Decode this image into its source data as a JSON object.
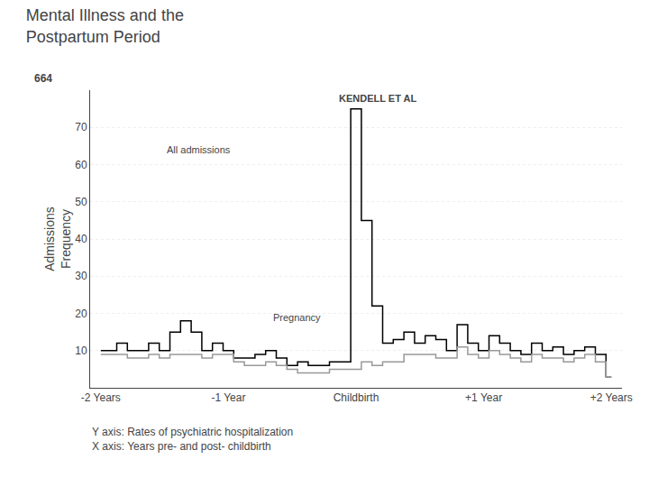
{
  "chart_data": {
    "type": "line",
    "title": "Mental Illness and the\nPostpartum Period",
    "notes": [
      "Y axis: Rates of psychiatric hospitalization",
      "X axis: Years pre- and post- childbirth"
    ],
    "corner_label": "664",
    "ylabel": "Admissions\nFrequency",
    "x": [
      -24,
      -23,
      -22,
      -21,
      -20,
      -19,
      -18,
      -17,
      -16,
      -15,
      -14,
      -13,
      -12,
      -11,
      -10,
      -9,
      -8,
      -7,
      -6,
      -5,
      -4,
      -3,
      -2,
      -1,
      0,
      1,
      2,
      3,
      4,
      5,
      6,
      7,
      8,
      9,
      10,
      11,
      12,
      13,
      14,
      15,
      16,
      17,
      18,
      19,
      20,
      21,
      22,
      23,
      24
    ],
    "series": [
      {
        "color": "#000000",
        "line_style": "step",
        "values": [
          10,
          10,
          12,
          10,
          10,
          12,
          10,
          15,
          18,
          15,
          10,
          12,
          10,
          8,
          8,
          9,
          10,
          8,
          6,
          7,
          6,
          6,
          7,
          7,
          75,
          45,
          22,
          12,
          13,
          15,
          12,
          14,
          13,
          10,
          17,
          12,
          10,
          14,
          12,
          10,
          9,
          12,
          10,
          11,
          9,
          10,
          11,
          9,
          3
        ]
      },
      {
        "color": "#999999",
        "line_style": "step",
        "values": [
          9,
          9,
          9,
          8,
          8,
          9,
          8,
          9,
          9,
          9,
          8,
          9,
          9,
          7,
          6,
          6,
          7,
          6,
          5,
          4,
          4,
          4,
          5,
          5,
          5,
          7,
          6,
          7,
          7,
          9,
          9,
          9,
          8,
          8,
          11,
          9,
          8,
          10,
          9,
          8,
          7,
          9,
          8,
          8,
          7,
          8,
          9,
          7,
          3
        ]
      }
    ],
    "annotations": [
      {
        "text": "KENDELL ET AL",
        "x": 2,
        "y": 76
      },
      {
        "text": "All admissions",
        "x": -18,
        "y": 62
      },
      {
        "text": "Pregnancy",
        "x": -8,
        "y": 17
      }
    ],
    "xlim": [
      -25,
      25
    ],
    "xticks": [
      {
        "value": -24,
        "label": "-2 Years"
      },
      {
        "value": -12,
        "label": "-1 Year"
      },
      {
        "value": 0,
        "label": "Childbirth"
      },
      {
        "value": 12,
        "label": "+1 Year"
      },
      {
        "value": 24,
        "label": "+2 Years"
      }
    ],
    "ylim": [
      0,
      80
    ],
    "yticks": [
      10,
      20,
      30,
      40,
      50,
      60,
      70
    ],
    "grid": "y"
  }
}
